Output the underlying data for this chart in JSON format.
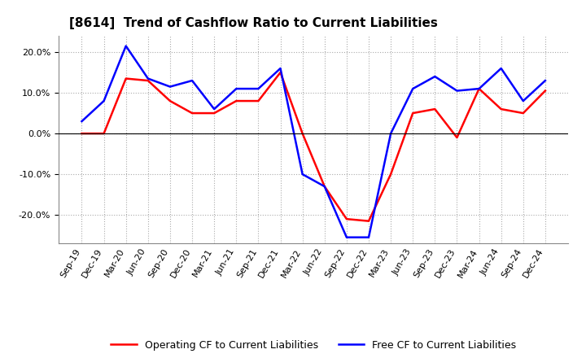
{
  "title": "[8614]  Trend of Cashflow Ratio to Current Liabilities",
  "labels": [
    "Sep-19",
    "Dec-19",
    "Mar-20",
    "Jun-20",
    "Sep-20",
    "Dec-20",
    "Mar-21",
    "Jun-21",
    "Sep-21",
    "Dec-21",
    "Mar-22",
    "Jun-22",
    "Sep-22",
    "Dec-22",
    "Mar-23",
    "Jun-23",
    "Sep-23",
    "Dec-23",
    "Mar-24",
    "Jun-24",
    "Sep-24",
    "Dec-24"
  ],
  "operating_cf": [
    0.0,
    0.0,
    13.5,
    13.0,
    8.0,
    5.0,
    5.0,
    8.0,
    8.0,
    15.0,
    0.0,
    -13.0,
    -21.0,
    -21.5,
    -10.0,
    5.0,
    6.0,
    -1.0,
    11.0,
    6.0,
    5.0,
    10.5
  ],
  "free_cf": [
    3.0,
    8.0,
    21.5,
    13.5,
    11.5,
    13.0,
    6.0,
    11.0,
    11.0,
    16.0,
    -10.0,
    -13.0,
    -25.5,
    -25.5,
    0.0,
    11.0,
    14.0,
    10.5,
    11.0,
    16.0,
    8.0,
    13.0
  ],
  "operating_color": "#FF0000",
  "free_color": "#0000FF",
  "background_color": "#FFFFFF",
  "plot_bg_color": "#FFFFFF",
  "grid_color": "#AAAAAA",
  "ylim": [
    -27,
    24
  ],
  "yticks": [
    -20,
    -10,
    0,
    10,
    20
  ],
  "title_fontsize": 11,
  "legend_fontsize": 9,
  "tick_fontsize": 8
}
